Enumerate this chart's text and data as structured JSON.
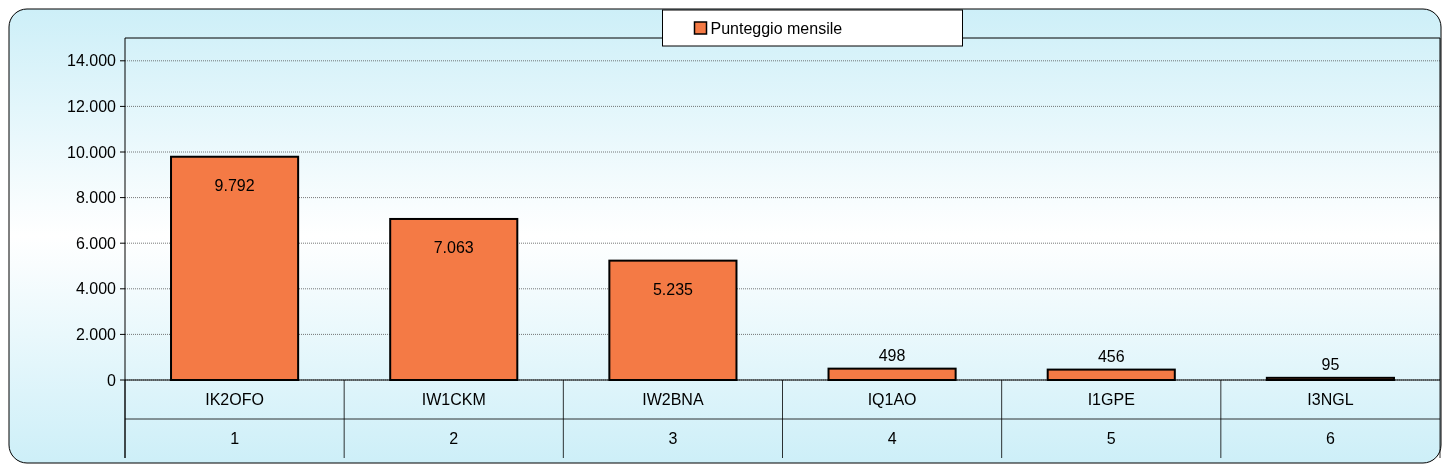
{
  "chart_data": {
    "type": "bar",
    "categories": [
      "IK2OFO\n1",
      "IW1CKM\n2",
      "IW2BNA\n3",
      "IQ1AO\n4",
      "I1GPE\n5",
      "I3NGL\n6"
    ],
    "series": [
      {
        "name": "Punteggio mensile",
        "color": "#f47a45",
        "values": [
          9792,
          7063,
          5235,
          498,
          456,
          95
        ],
        "value_labels": [
          "9.792",
          "7.063",
          "5.235",
          "498",
          "456",
          "95"
        ]
      }
    ],
    "ylim": [
      0,
      15000
    ],
    "yticks": [
      {
        "value": 0,
        "label": "0"
      },
      {
        "value": 2000,
        "label": "2.000"
      },
      {
        "value": 4000,
        "label": "4.000"
      },
      {
        "value": 6000,
        "label": "6.000"
      },
      {
        "value": 8000,
        "label": "8.000"
      },
      {
        "value": 10000,
        "label": "10.000"
      },
      {
        "value": 12000,
        "label": "12.000"
      },
      {
        "value": 14000,
        "label": "14.000"
      }
    ],
    "grid": "y",
    "legend": "top"
  }
}
